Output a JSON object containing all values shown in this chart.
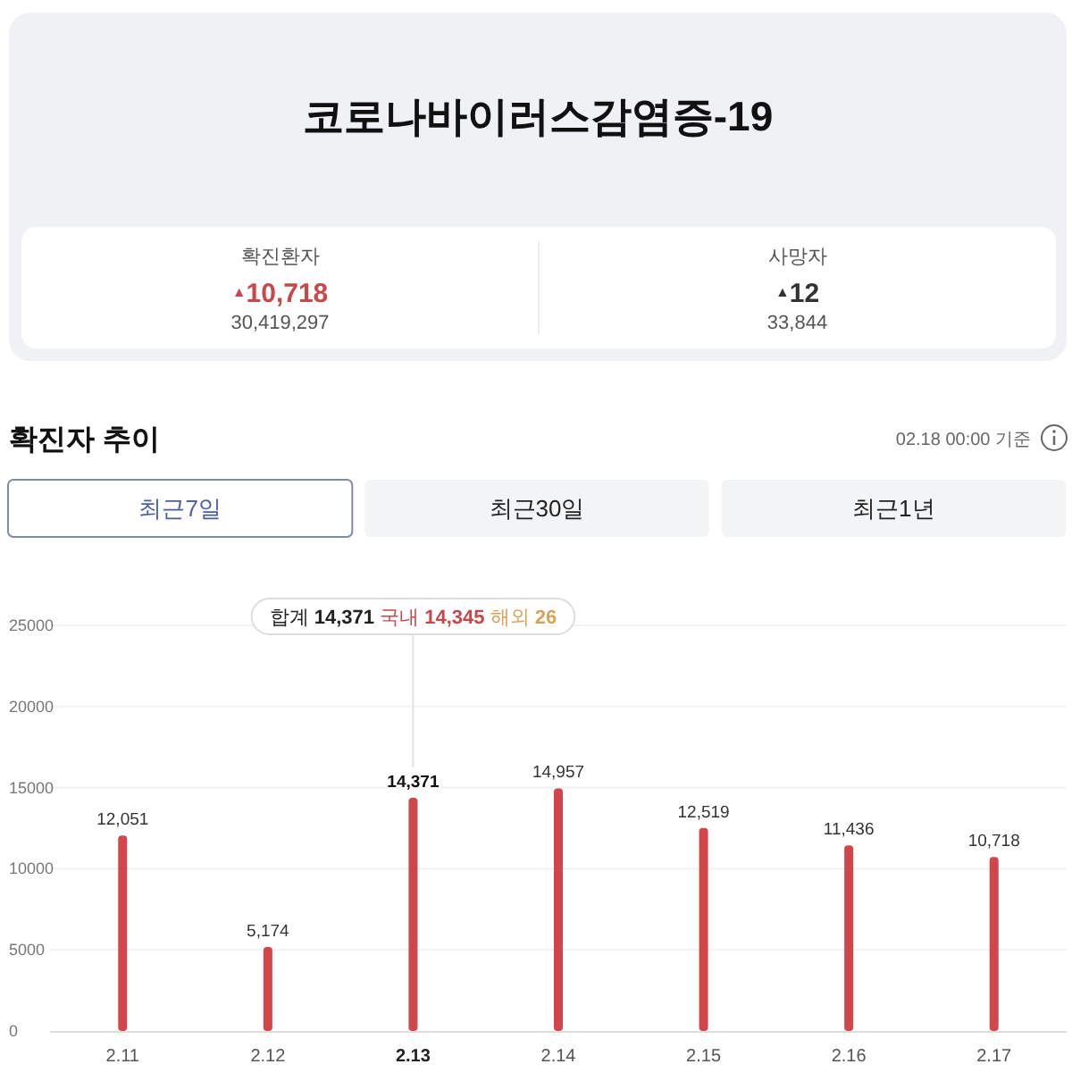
{
  "chart_data": [
    {
      "type": "other",
      "title": "코로나바이러스감염증-19",
      "annotations": [
        "확진환자",
        "$^{▲}$10,718",
        "30,419,297",
        "사망자",
        "$^{▲}$12",
        "33,844"
      ]
    },
    {
      "type": "bar",
      "title": "확진자 추이",
      "subtitle": "02.18 00:00 기준",
      "categories": [
        "2.11",
        "2.12",
        "2.13",
        "2.14",
        "2.15",
        "2.16",
        "2.17"
      ],
      "values": [
        12051,
        5174,
        14371,
        14957,
        12519,
        11436,
        10718
      ],
      "value_labels": [
        "12,051",
        "5,174",
        "14,371",
        "14,957",
        "12,519",
        "11,436",
        "10,718"
      ],
      "color": "#d2464b",
      "ylim": [
        0,
        25000
      ],
      "yticks": [
        0,
        5000,
        10000,
        15000,
        20000,
        25000
      ],
      "grid": "y",
      "annotations": [
        "최근7일",
        "최근30일",
        "최근1년",
        {
          "text": "합계 14,371 국내 14,345 해외 26",
          "x": "2.13"
        }
      ]
    }
  ]
}
